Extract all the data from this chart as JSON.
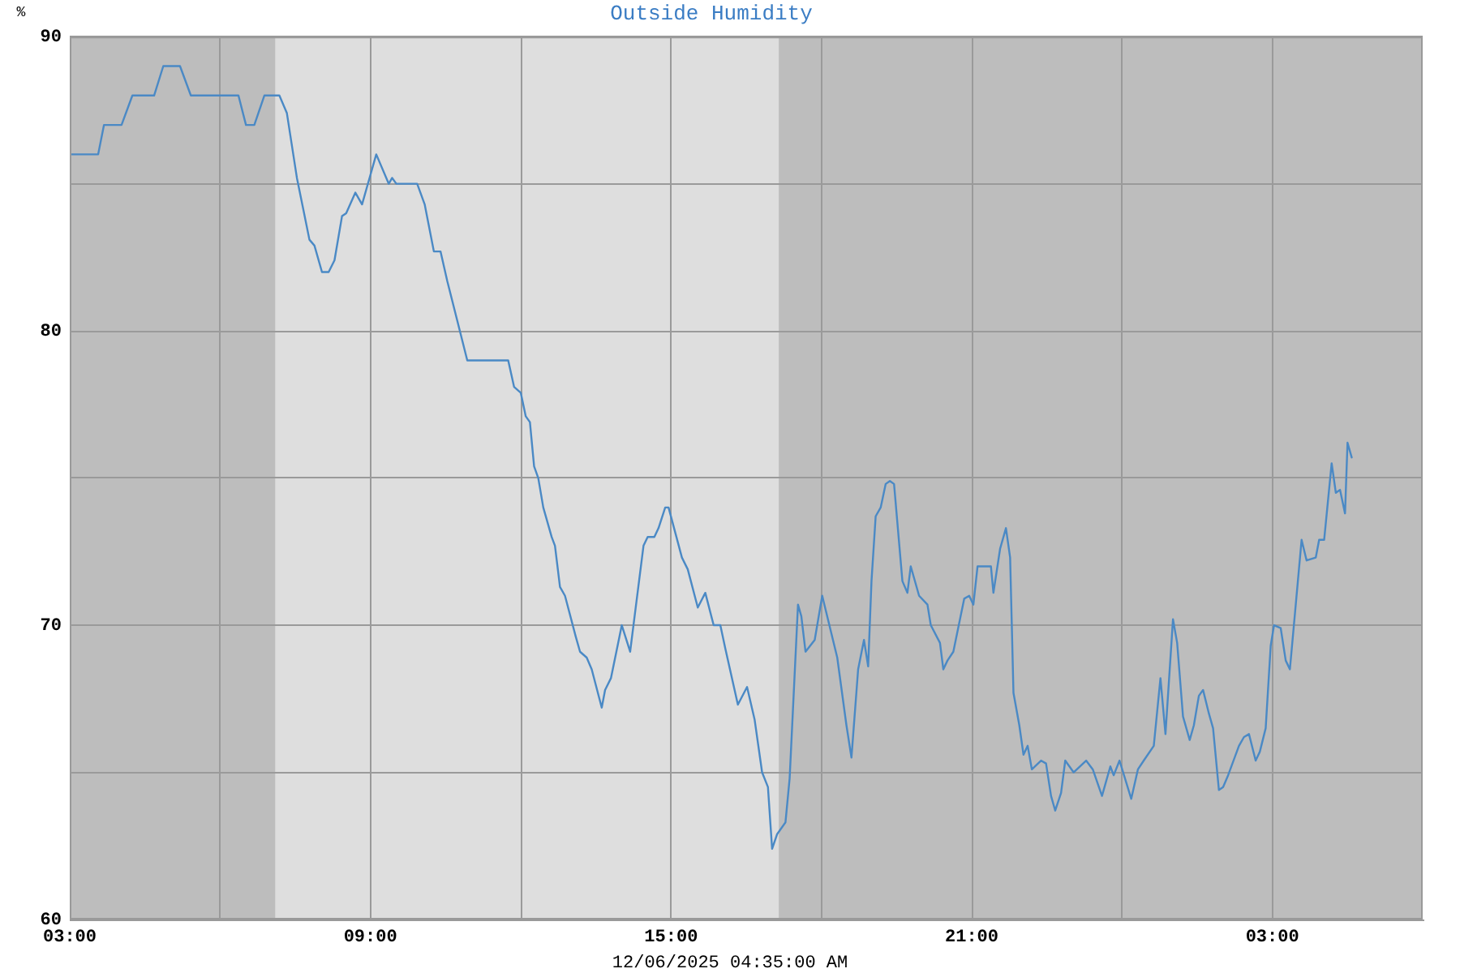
{
  "chart_data": {
    "type": "line",
    "title": "Outside Humidity",
    "ylabel": "%",
    "annotations": [
      "12/06/2025 04:35:00 AM"
    ],
    "x": [
      "2025-12-05T03:02",
      "2025-12-05T03:34",
      "2025-12-05T03:41",
      "2025-12-05T04:02",
      "2025-12-05T04:15",
      "2025-12-05T04:41",
      "2025-12-05T04:52",
      "2025-12-05T05:12",
      "2025-12-05T05:25",
      "2025-12-05T06:22",
      "2025-12-05T06:31",
      "2025-12-05T06:41",
      "2025-12-05T06:53",
      "2025-12-05T07:11",
      "2025-12-05T07:20",
      "2025-12-05T07:32",
      "2025-12-05T07:47",
      "2025-12-05T07:53",
      "2025-12-05T08:02",
      "2025-12-05T08:10",
      "2025-12-05T08:17",
      "2025-12-05T08:26",
      "2025-12-05T08:31",
      "2025-12-05T08:42",
      "2025-12-05T08:50",
      "2025-12-05T08:58",
      "2025-12-05T09:07",
      "2025-12-05T09:22",
      "2025-12-05T09:26",
      "2025-12-05T09:31",
      "2025-12-05T09:56",
      "2025-12-05T10:05",
      "2025-12-05T10:16",
      "2025-12-05T10:24",
      "2025-12-05T10:32",
      "2025-12-05T10:48",
      "2025-12-05T10:56",
      "2025-12-05T11:16",
      "2025-12-05T11:45",
      "2025-12-05T11:52",
      "2025-12-05T12:00",
      "2025-12-05T12:06",
      "2025-12-05T12:11",
      "2025-12-05T12:16",
      "2025-12-05T12:21",
      "2025-12-05T12:27",
      "2025-12-05T12:37",
      "2025-12-05T12:41",
      "2025-12-05T12:47",
      "2025-12-05T12:53",
      "2025-12-05T13:06",
      "2025-12-05T13:11",
      "2025-12-05T13:19",
      "2025-12-05T13:25",
      "2025-12-05T13:37",
      "2025-12-05T13:41",
      "2025-12-05T13:48",
      "2025-12-05T14:01",
      "2025-12-05T14:11",
      "2025-12-05T14:27",
      "2025-12-05T14:32",
      "2025-12-05T14:40",
      "2025-12-05T14:45",
      "2025-12-05T14:53",
      "2025-12-05T14:57",
      "2025-12-05T15:13",
      "2025-12-05T15:20",
      "2025-12-05T15:32",
      "2025-12-05T15:41",
      "2025-12-05T15:51",
      "2025-12-05T15:59",
      "2025-12-05T16:05",
      "2025-12-05T16:20",
      "2025-12-05T16:31",
      "2025-12-05T16:40",
      "2025-12-05T16:49",
      "2025-12-05T16:56",
      "2025-12-05T17:01",
      "2025-12-05T17:07",
      "2025-12-05T17:17",
      "2025-12-05T17:22",
      "2025-12-05T17:32",
      "2025-12-05T17:36",
      "2025-12-05T17:41",
      "2025-12-05T17:52",
      "2025-12-05T18:01",
      "2025-12-05T18:19",
      "2025-12-05T18:30",
      "2025-12-05T18:36",
      "2025-12-05T18:44",
      "2025-12-05T18:51",
      "2025-12-05T18:56",
      "2025-12-05T19:00",
      "2025-12-05T19:05",
      "2025-12-05T19:11",
      "2025-12-05T19:17",
      "2025-12-05T19:22",
      "2025-12-05T19:27",
      "2025-12-05T19:37",
      "2025-12-05T19:43",
      "2025-12-05T19:47",
      "2025-12-05T19:57",
      "2025-12-05T20:07",
      "2025-12-05T20:11",
      "2025-12-05T20:22",
      "2025-12-05T20:26",
      "2025-12-05T20:31",
      "2025-12-05T20:38",
      "2025-12-05T20:51",
      "2025-12-05T20:57",
      "2025-12-05T21:02",
      "2025-12-05T21:07",
      "2025-12-05T21:13",
      "2025-12-05T21:23",
      "2025-12-05T21:26",
      "2025-12-05T21:34",
      "2025-12-05T21:41",
      "2025-12-05T21:46",
      "2025-12-05T21:50",
      "2025-12-05T21:57",
      "2025-12-05T22:02",
      "2025-12-05T22:07",
      "2025-12-05T22:12",
      "2025-12-05T22:23",
      "2025-12-05T22:29",
      "2025-12-05T22:35",
      "2025-12-05T22:40",
      "2025-12-05T22:47",
      "2025-12-05T22:52",
      "2025-12-05T23:02",
      "2025-12-05T23:17",
      "2025-12-05T23:25",
      "2025-12-05T23:36",
      "2025-12-05T23:46",
      "2025-12-05T23:50",
      "2025-12-05T23:57",
      "2025-12-06T00:11",
      "2025-12-06T00:19",
      "2025-12-06T00:26",
      "2025-12-06T00:38",
      "2025-12-06T00:46",
      "2025-12-06T00:52",
      "2025-12-06T01:01",
      "2025-12-06T01:06",
      "2025-12-06T01:13",
      "2025-12-06T01:21",
      "2025-12-06T01:26",
      "2025-12-06T01:32",
      "2025-12-06T01:37",
      "2025-12-06T01:44",
      "2025-12-06T01:49",
      "2025-12-06T01:56",
      "2025-12-06T02:01",
      "2025-12-06T02:07",
      "2025-12-06T02:20",
      "2025-12-06T02:26",
      "2025-12-06T02:32",
      "2025-12-06T02:40",
      "2025-12-06T02:45",
      "2025-12-06T02:52",
      "2025-12-06T02:58",
      "2025-12-06T03:02",
      "2025-12-06T03:10",
      "2025-12-06T03:16",
      "2025-12-06T03:21",
      "2025-12-06T03:35",
      "2025-12-06T03:41",
      "2025-12-06T03:52",
      "2025-12-06T03:56",
      "2025-12-06T04:02",
      "2025-12-06T04:11",
      "2025-12-06T04:16",
      "2025-12-06T04:21",
      "2025-12-06T04:27",
      "2025-12-06T04:30",
      "2025-12-06T04:35"
    ],
    "series": [
      {
        "color": "#4a89c5",
        "values": [
          86,
          86,
          87,
          87,
          88,
          88,
          89,
          89,
          88,
          88,
          87,
          87,
          88,
          88,
          87.4,
          85.2,
          83.1,
          82.9,
          82,
          82,
          82.4,
          83.9,
          84,
          84.7,
          84.3,
          85.1,
          86,
          85,
          85.2,
          85,
          85,
          84.3,
          82.7,
          82.7,
          81.7,
          79.9,
          79,
          79,
          79,
          78.1,
          77.9,
          77.1,
          76.9,
          75.4,
          75,
          74,
          73,
          72.7,
          71.3,
          71,
          69.6,
          69.1,
          68.9,
          68.5,
          67.2,
          67.8,
          68.2,
          70,
          69.1,
          72.7,
          73,
          73,
          73.3,
          74,
          74,
          72.3,
          71.9,
          70.6,
          71.1,
          70,
          70,
          69.2,
          67.3,
          67.9,
          66.8,
          65,
          64.5,
          62.4,
          62.9,
          63.3,
          64.8,
          70.7,
          70.3,
          69.1,
          69.5,
          71,
          68.9,
          66.6,
          65.5,
          68.5,
          69.5,
          68.6,
          71.5,
          73.7,
          74,
          74.8,
          74.9,
          74.8,
          71.5,
          71.1,
          72,
          71,
          70.7,
          70,
          69.4,
          68.5,
          68.8,
          69.1,
          70.9,
          71,
          70.7,
          72,
          72,
          72,
          71.1,
          72.6,
          73.3,
          72.3,
          67.7,
          66.6,
          65.6,
          65.9,
          65.1,
          65.4,
          65.3,
          64.2,
          63.7,
          64.3,
          65.4,
          65,
          65.4,
          65.1,
          64.2,
          65.2,
          64.9,
          65.4,
          64.1,
          65.1,
          65.4,
          65.9,
          68.2,
          66.3,
          70.2,
          69.4,
          66.9,
          66.1,
          66.6,
          67.6,
          67.8,
          67,
          66.5,
          64.4,
          64.5,
          64.9,
          65.9,
          66.2,
          66.3,
          65.4,
          65.7,
          66.5,
          69.3,
          70,
          69.9,
          68.8,
          68.5,
          72.9,
          72.2,
          72.3,
          72.9,
          72.9,
          75.5,
          74.5,
          74.6,
          73.8,
          76.2,
          75.7
        ]
      }
    ],
    "xlim": [
      "2025-12-05T03:00",
      "2025-12-06T06:00"
    ],
    "xticks": [
      {
        "value": "2025-12-05T03:00",
        "label": "03:00"
      },
      {
        "value": "2025-12-05T06:00",
        "label": null
      },
      {
        "value": "2025-12-05T09:00",
        "label": "09:00"
      },
      {
        "value": "2025-12-05T12:00",
        "label": null
      },
      {
        "value": "2025-12-05T15:00",
        "label": "15:00"
      },
      {
        "value": "2025-12-05T18:00",
        "label": null
      },
      {
        "value": "2025-12-05T21:00",
        "label": "21:00"
      },
      {
        "value": "2025-12-06T00:00",
        "label": null
      },
      {
        "value": "2025-12-06T03:00",
        "label": "03:00"
      }
    ],
    "ylim": [
      60,
      90
    ],
    "yticks": [
      60,
      {
        "value": 65,
        "label": null
      },
      70,
      {
        "value": 75,
        "label": null
      },
      80,
      {
        "value": 85,
        "label": null
      },
      90
    ],
    "bands": [
      {
        "axis": "x",
        "from": "2025-12-05T07:06",
        "to": "2025-12-05T17:09",
        "color": "#dedede"
      }
    ],
    "grid": true
  }
}
